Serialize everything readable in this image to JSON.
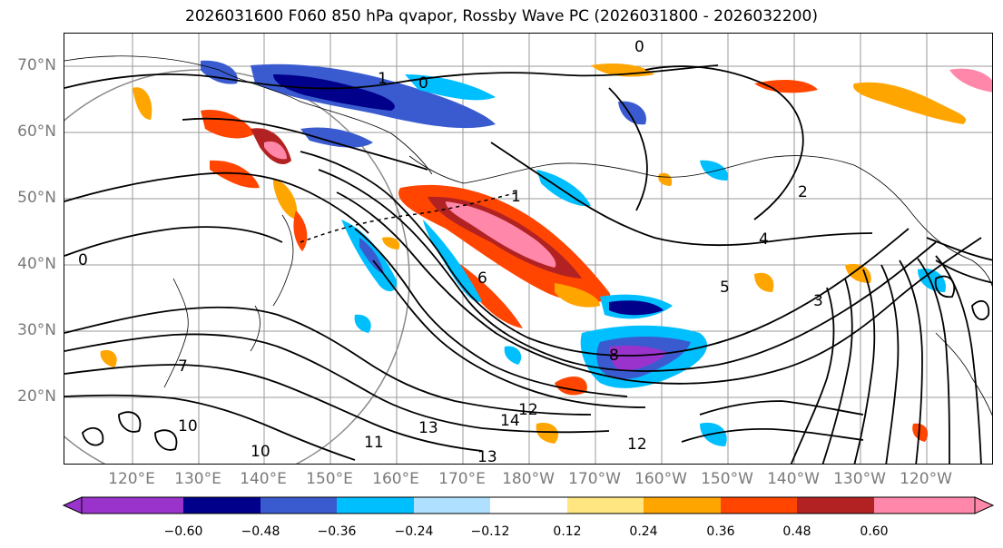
{
  "title": "2026031600 F060 850 hPa qvapor, Rossby Wave PC (2026031800 - 2026032200)",
  "lat_labels": [
    "70°N",
    "60°N",
    "50°N",
    "40°N",
    "30°N",
    "20°N"
  ],
  "lon_labels": [
    "120°E",
    "130°E",
    "140°E",
    "150°E",
    "160°E",
    "170°E",
    "180°W",
    "170°W",
    "160°W",
    "150°W",
    "140°W",
    "130°W",
    "120°W"
  ],
  "contour_labels": [
    "0",
    "0",
    "0",
    "1",
    "1",
    "2",
    "3",
    "4",
    "5",
    "6",
    "7",
    "8",
    "10",
    "10",
    "11",
    "12",
    "12",
    "13",
    "13",
    "14"
  ],
  "colorbar": {
    "ticks": [
      "−0.60",
      "−0.48",
      "−0.36",
      "−0.24",
      "−0.12",
      "0.12",
      "0.24",
      "0.36",
      "0.48",
      "0.60"
    ],
    "colors": [
      "#9933cc",
      "#00008b",
      "#3a5bd0",
      "#00bfff",
      "#afe0ff",
      "#ffffff",
      "#ffe680",
      "#ffa500",
      "#ff4500",
      "#b22222",
      "#ff88aa"
    ]
  }
}
